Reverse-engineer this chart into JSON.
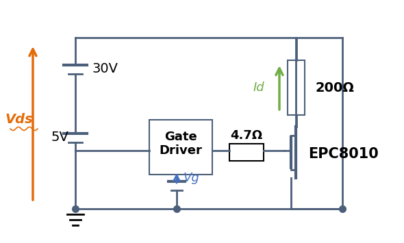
{
  "bg_color": "#ffffff",
  "wire_color": "#4c5f7a",
  "orange_color": "#e36c09",
  "green_color": "#70ad47",
  "black_color": "#000000",
  "blue_color": "#4472c4",
  "vds_label": "Vds",
  "vg_label": "Vg",
  "id_label": "Id",
  "v30_label": "30V",
  "v5_label": "5V",
  "gate_driver_label": "Gate\nDriver",
  "resistor_label": "4.7Ω",
  "res2_label": "200Ω",
  "transistor_label": "EPC8010",
  "figsize": [
    5.9,
    3.55
  ],
  "dpi": 100
}
